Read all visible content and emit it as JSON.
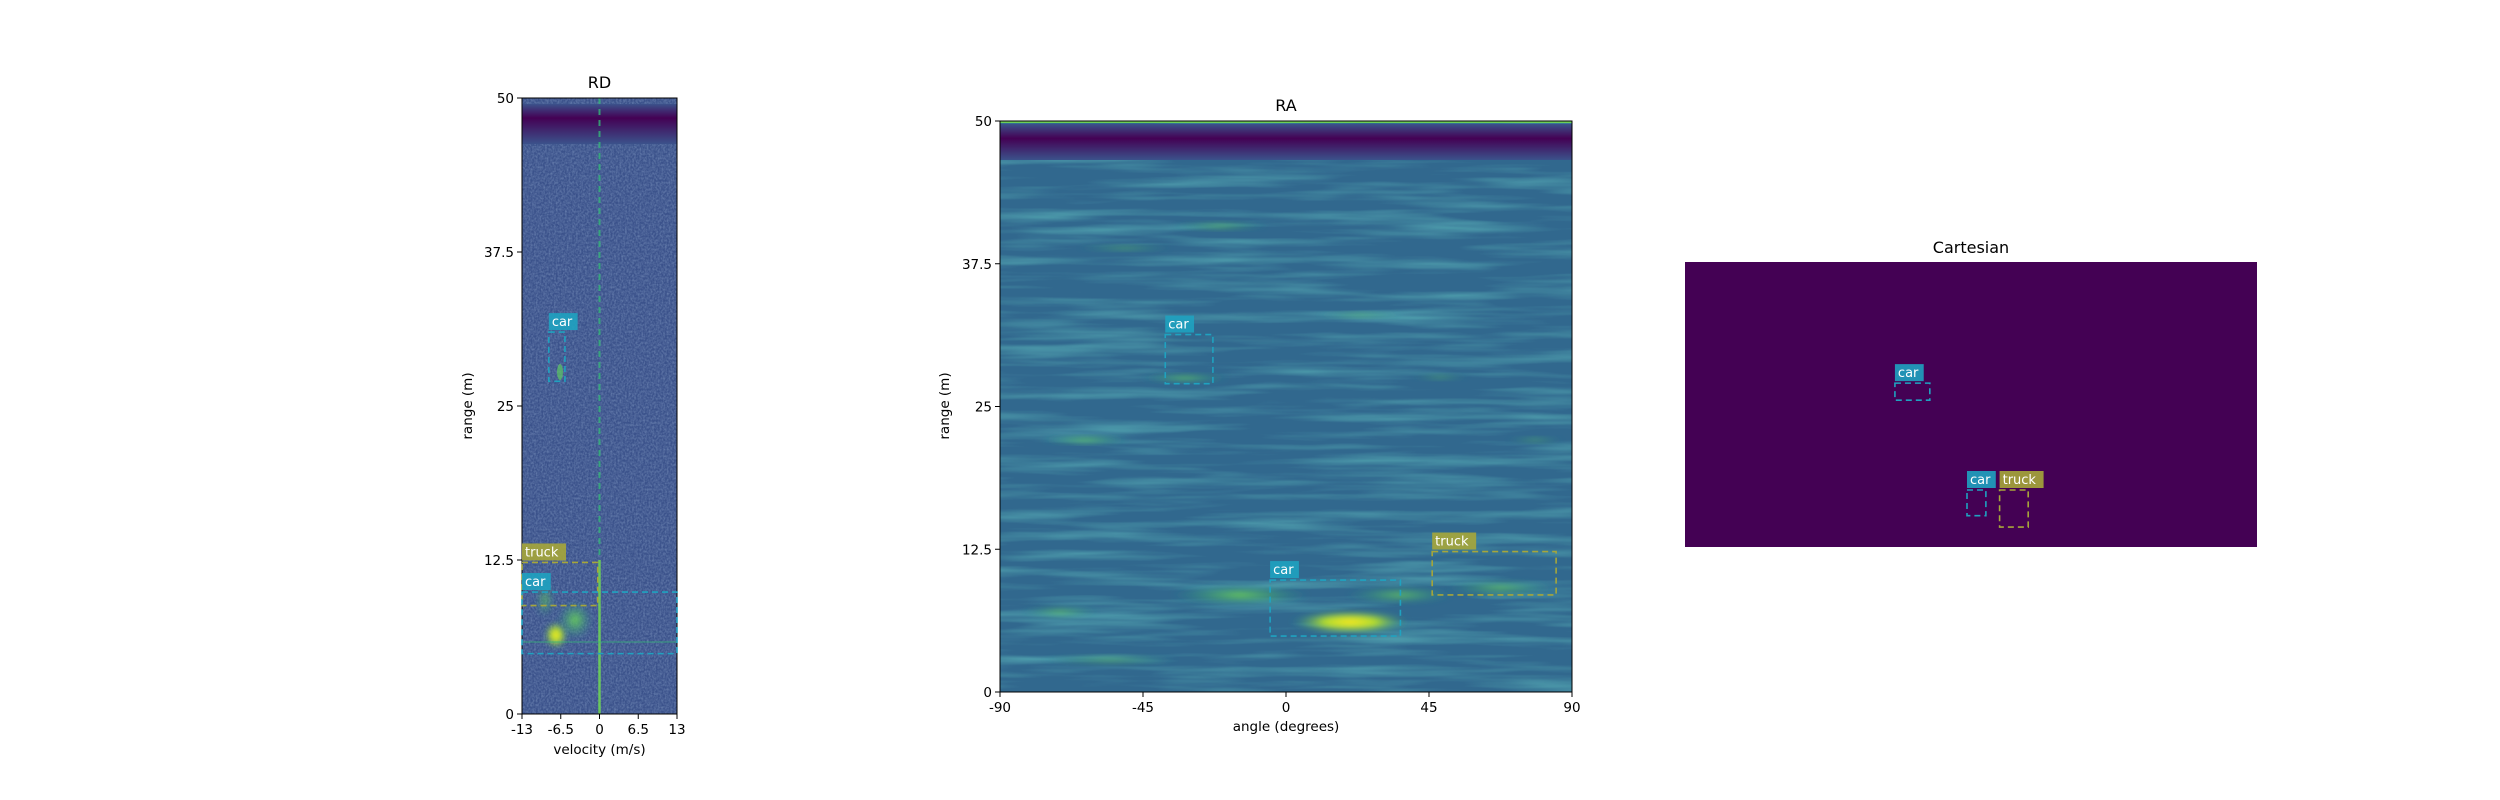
{
  "colors": {
    "car": "#1fa2c0",
    "truck": "#a6a63a",
    "viridis_dark": "#440154",
    "viridis_mid": "#3b528b",
    "viridis_teal": "#21918c",
    "viridis_green": "#5ec962",
    "viridis_yellow": "#fde725"
  },
  "chart_data": [
    {
      "type": "heatmap",
      "title": "RD",
      "xlabel": "velocity (m/s)",
      "ylabel": "range (m)",
      "xlim": [
        -13,
        13
      ],
      "ylim": [
        0,
        50
      ],
      "xticks": [
        -13,
        -6.5,
        0,
        6.5,
        13
      ],
      "xtick_labels": [
        "-13",
        "-6.5",
        "0",
        "6.5",
        "13"
      ],
      "yticks": [
        0,
        12.5,
        25,
        37.5,
        50
      ],
      "ytick_labels": [
        "0",
        "12.5",
        "25",
        "37.5",
        "50"
      ],
      "colormap": "viridis",
      "boxes": [
        {
          "label": "car",
          "x0": -8.5,
          "x1": -5.8,
          "y0": 27,
          "y1": 31
        },
        {
          "label": "truck",
          "x0": -13,
          "x1": -0.3,
          "y0": 8.8,
          "y1": 12.3
        },
        {
          "label": "car",
          "x0": -13,
          "x1": 13,
          "y0": 4.9,
          "y1": 9.9
        }
      ]
    },
    {
      "type": "heatmap",
      "title": "RA",
      "xlabel": "angle (degrees)",
      "ylabel": "range (m)",
      "xlim": [
        -90,
        90
      ],
      "ylim": [
        0,
        50
      ],
      "xticks": [
        -90,
        -45,
        0,
        45,
        90
      ],
      "xtick_labels": [
        "-90",
        "-45",
        "0",
        "45",
        "90"
      ],
      "yticks": [
        0,
        12.5,
        25,
        37.5,
        50
      ],
      "ytick_labels": [
        "0",
        "12.5",
        "25",
        "37.5",
        "50"
      ],
      "colormap": "viridis",
      "boxes": [
        {
          "label": "car",
          "x0": -38,
          "x1": -23,
          "y0": 27,
          "y1": 31.3
        },
        {
          "label": "car",
          "x0": -5,
          "x1": 36,
          "y0": 4.9,
          "y1": 9.8
        },
        {
          "label": "truck",
          "x0": 46,
          "x1": 85,
          "y0": 8.5,
          "y1": 12.3
        }
      ]
    },
    {
      "type": "heatmap",
      "title": "Cartesian",
      "colormap": "viridis",
      "boxes": [
        {
          "label": "car",
          "x0": 0.367,
          "x1": 0.428,
          "y0": 0.425,
          "y1": 0.485
        },
        {
          "label": "car",
          "x0": 0.493,
          "x1": 0.526,
          "y0": 0.8,
          "y1": 0.89
        },
        {
          "label": "truck",
          "x0": 0.55,
          "x1": 0.6,
          "y0": 0.8,
          "y1": 0.93
        }
      ]
    }
  ]
}
